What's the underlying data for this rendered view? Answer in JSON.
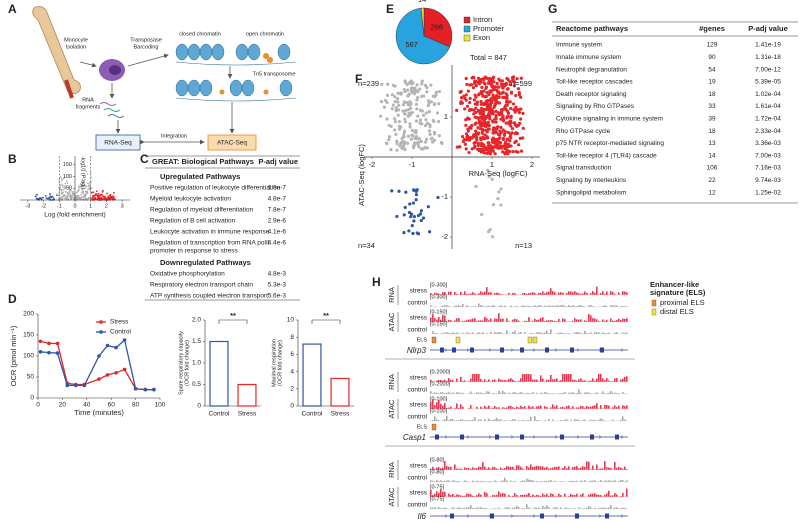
{
  "panel_labels": [
    "A",
    "B",
    "C",
    "D",
    "E",
    "F",
    "G",
    "H"
  ],
  "diagram_a": {
    "isolation": [
      "Monocyte",
      "Isolation"
    ],
    "barcoding": [
      "Transposase",
      "Barcoding"
    ],
    "closed": "closed chromatin",
    "open": "open chromatin",
    "tn5": "Tn5 transposome",
    "fragments": [
      "RNA",
      "fragments"
    ],
    "integration": "Integration",
    "rna_box": "RNA-Seq",
    "atac_box": "ATAC-Seq"
  },
  "table_c": {
    "title": "GREAT: Biological Pathways",
    "pcol": "P-adj value",
    "up_title": "Upregulated Pathways",
    "up": [
      [
        [
          "Positive regulation of leukocyte differentiation"
        ],
        "1.9e-7"
      ],
      [
        [
          "Myeloid leukocyte activation"
        ],
        "4.8e-7"
      ],
      [
        [
          "Regulation of myeloid differentiation"
        ],
        "7.8e-7"
      ],
      [
        [
          "Regulation of B cell activation"
        ],
        "2.9e-6"
      ],
      [
        [
          "Leukocyte activation in immune response"
        ],
        "4.1e-6"
      ],
      [
        [
          "Regulation of transcription from RNA polII",
          "promoter in response to stress"
        ],
        "4.4e-6"
      ]
    ],
    "down_title": "Downregulated Pathways",
    "down": [
      [
        [
          "Oxidative phosphorylation"
        ],
        "4.8e-3"
      ],
      [
        [
          "Respiratory electron transport chain"
        ],
        "5.3e-3"
      ],
      [
        [
          "ATP synthesis coupled electron transport"
        ],
        "5.6e-3"
      ]
    ]
  },
  "table_g": {
    "headers": [
      "Reactome pathways",
      "#genes",
      "P-adj value"
    ],
    "rows": [
      [
        "Immune system",
        129,
        "1.41e-19"
      ],
      [
        "Innate immune system",
        90,
        "1.31e-18"
      ],
      [
        "Neutrophil degranulation",
        54,
        "7.00e-12"
      ],
      [
        "Toll-like receptor cascades",
        19,
        "5.39e-05"
      ],
      [
        "Death receptor signaling",
        18,
        "1.02e-04"
      ],
      [
        "Signaling by Rho GTPases",
        33,
        "1.61e-04"
      ],
      [
        "Cytokine signaling in immune system",
        39,
        "1.72e-04"
      ],
      [
        "Rho GTPase cycle",
        18,
        "2.33e-04"
      ],
      [
        "p75 NTR receptor-mediated signaling",
        13,
        "3.36e-03"
      ],
      [
        "Toll-like receptor 4 (TLR4) cascade",
        14,
        "7.00e-03"
      ],
      [
        "Signal transduction",
        106,
        "7.16e-03"
      ],
      [
        "Signaling by interleukins",
        22,
        "9.74e-03"
      ],
      [
        "Sphingolipid metabolism",
        12,
        "1.25e-02"
      ]
    ]
  },
  "tracks_h": {
    "legend_title": [
      "Enhancer-like",
      "signature (ELS)"
    ],
    "legend": [
      {
        "label": "proximal ELS",
        "color": "#e8912d"
      },
      {
        "label": "distal ELS",
        "color": "#f5e33a"
      }
    ],
    "stress_color": "#e8384f",
    "control_color": "#a8a8a8",
    "els_label": "ELS",
    "loci": [
      {
        "gene": "Nlrp3",
        "assays": [
          {
            "name": "RNA",
            "tracks": [
              [
                "stress",
                "[0-300]"
              ],
              [
                "control",
                "[0-300]"
              ]
            ]
          },
          {
            "name": "ATAC",
            "tracks": [
              [
                "stress",
                "[0-150]"
              ],
              [
                "control",
                "[0-150]"
              ]
            ]
          }
        ],
        "els": true
      },
      {
        "gene": "Casp1",
        "assays": [
          {
            "name": "RNA",
            "tracks": [
              [
                "stress",
                "[0-2000]"
              ],
              [
                "control",
                "[0-2000]"
              ]
            ]
          },
          {
            "name": "ATAC",
            "tracks": [
              [
                "stress",
                "[0-100]"
              ],
              [
                "control",
                "[0-100]"
              ]
            ]
          }
        ],
        "els": true
      },
      {
        "gene": "Il6",
        "assays": [
          {
            "name": "RNA",
            "tracks": [
              [
                "stress",
                "[0-80]"
              ],
              [
                "control",
                "[0-80]"
              ]
            ]
          },
          {
            "name": "ATAC",
            "tracks": [
              [
                "stress",
                "[0-75]"
              ],
              [
                "control",
                "[0-75]"
              ]
            ]
          }
        ],
        "els": false
      }
    ]
  },
  "chart_data": [
    {
      "type": "volcano",
      "xlabel": "Log (fold enrichment)",
      "ylabel": "-log10 (P-adj)",
      "xlim": [
        -3.5,
        3.5
      ],
      "ylim": [
        0,
        170
      ],
      "xticks": [
        -3,
        -2,
        -1,
        0,
        1,
        2,
        3
      ],
      "yticks": [
        50,
        100,
        150
      ]
    },
    {
      "type": "line",
      "xlabel": "Time (minutes)",
      "ylabel": "OCR (pmol min⁻¹)",
      "x": [
        2,
        9,
        16,
        24,
        31,
        38,
        50,
        57,
        64,
        71,
        80,
        88,
        95
      ],
      "series": [
        {
          "name": "Stress",
          "color": "#e8262a",
          "values": [
            135,
            130,
            130,
            35,
            32,
            32,
            45,
            55,
            60,
            68,
            22,
            20,
            20
          ]
        },
        {
          "name": "Control",
          "color": "#2f55a4",
          "values": [
            110,
            108,
            107,
            30,
            30,
            30,
            100,
            125,
            120,
            138,
            22,
            20,
            20
          ]
        }
      ],
      "xlim": [
        0,
        100
      ],
      "ylim": [
        0,
        200
      ],
      "xticks": [
        0,
        20,
        40,
        60,
        80,
        100
      ],
      "yticks": [
        0,
        50,
        100,
        150,
        200
      ]
    },
    {
      "type": "bar",
      "ylabel": [
        "Spare respiratory capacity",
        "(OCR fold change)"
      ],
      "categories": [
        "Control",
        "Stress"
      ],
      "values": [
        1.5,
        0.5
      ],
      "colors": [
        "#2f55a4",
        "#e8262a"
      ],
      "ylim": [
        0,
        2
      ],
      "yticks": [
        0,
        0.5,
        {
          "value": 1,
          "label": "1.0"
        },
        1.5,
        {
          "value": 2,
          "label": "2.0"
        }
      ],
      "significance": "**"
    },
    {
      "type": "bar",
      "ylabel": [
        "Maximal respiration",
        "(OCR fold change)"
      ],
      "categories": [
        "Control",
        "Stress"
      ],
      "values": [
        7.2,
        3.2
      ],
      "colors": [
        "#2f55a4",
        "#e8262a"
      ],
      "ylim": [
        0,
        10
      ],
      "yticks": [
        0,
        2,
        4,
        6,
        8,
        10
      ],
      "significance": "**"
    },
    {
      "type": "pie",
      "categories": [
        "Intron",
        "Promoter",
        "Exon"
      ],
      "values": [
        266,
        567,
        14
      ],
      "colors": [
        "#e41f26",
        "#29a3df",
        "#f3e42a"
      ],
      "total_label": "Total = 847"
    },
    {
      "type": "quadrant",
      "xlabel": "RNA-Seq (logFC)",
      "ylabel": "ATAC-Seq (logFC)",
      "xlim": [
        -2.2,
        2.2
      ],
      "ylim": [
        -2.3,
        2.3
      ],
      "xticks": [
        -2,
        -1,
        1,
        2
      ],
      "yticks": [
        1,
        -1,
        -2
      ],
      "annotations": [
        "n=239",
        "n=599",
        "n=34",
        "n=13"
      ]
    }
  ]
}
